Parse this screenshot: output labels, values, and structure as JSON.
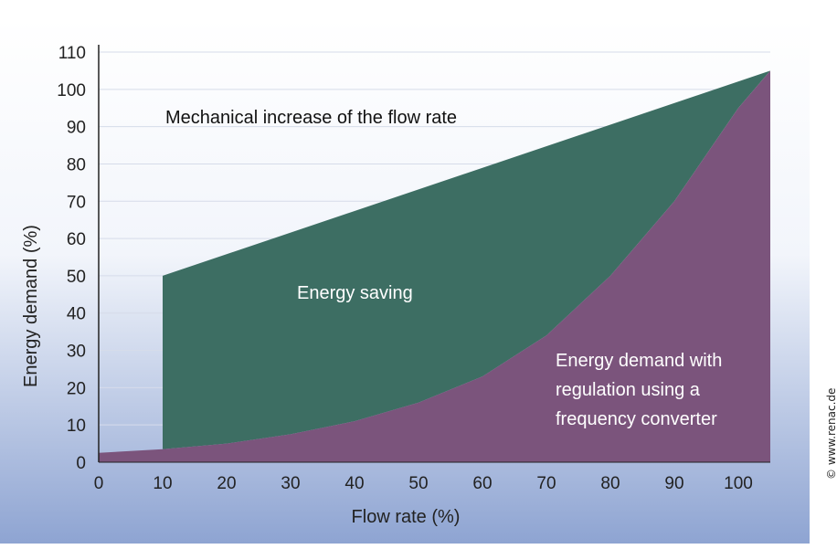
{
  "credit": "© www.renac.de",
  "chart_data": {
    "type": "area",
    "title": "",
    "xlabel": "Flow rate (%)",
    "ylabel": "Energy demand (%)",
    "xlim": [
      0,
      105
    ],
    "ylim": [
      0,
      110
    ],
    "x_ticks": [
      0,
      10,
      20,
      30,
      40,
      50,
      60,
      70,
      80,
      90,
      100
    ],
    "y_ticks": [
      0,
      10,
      20,
      30,
      40,
      50,
      60,
      70,
      80,
      90,
      100,
      110
    ],
    "grid": true,
    "series": [
      {
        "name": "Mechanical increase of the flow rate",
        "color": "#3d6e63",
        "points": [
          [
            0,
            2.5
          ],
          [
            10,
            3.5
          ],
          [
            10,
            50
          ],
          [
            105,
            105
          ]
        ]
      },
      {
        "name": "Energy demand with regulation using a frequency converter",
        "color": "#7b547c",
        "points": [
          [
            0,
            2.5
          ],
          [
            10,
            3.5
          ],
          [
            20,
            5
          ],
          [
            30,
            7.5
          ],
          [
            40,
            11
          ],
          [
            50,
            16
          ],
          [
            60,
            23
          ],
          [
            70,
            34
          ],
          [
            80,
            50
          ],
          [
            90,
            70
          ],
          [
            100,
            95
          ],
          [
            105,
            105
          ]
        ]
      }
    ],
    "annotations": [
      {
        "text": "Mechanical increase of the flow rate"
      },
      {
        "text": "Energy saving"
      },
      {
        "text": "Energy demand with"
      },
      {
        "text": "regulation using a"
      },
      {
        "text": "frequency converter"
      }
    ]
  }
}
